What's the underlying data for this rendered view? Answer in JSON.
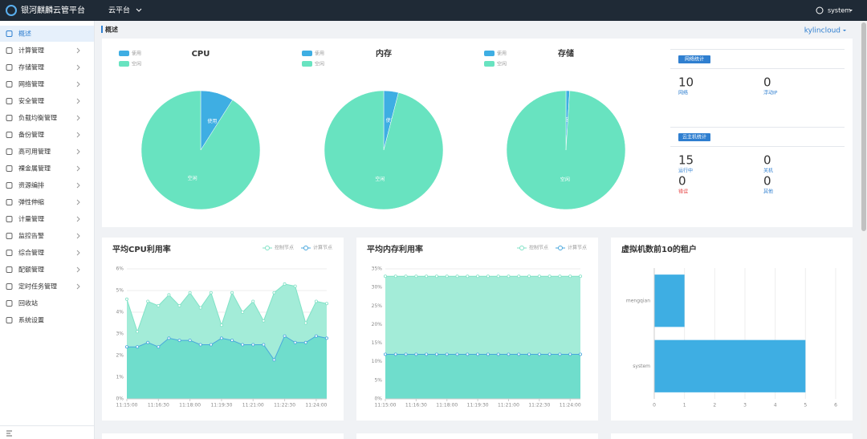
{
  "header": {
    "title": "银河麒麟云管平台",
    "menu": "云平台",
    "user": "system"
  },
  "sidebar": {
    "items": [
      "概述",
      "计算管理",
      "存储管理",
      "网络管理",
      "安全管理",
      "负载均衡管理",
      "备份管理",
      "高可用管理",
      "裸金属管理",
      "资源编排",
      "弹性伸缩",
      "计量管理",
      "监控告警",
      "综合管理",
      "配额管理",
      "定时任务管理",
      "回收站",
      "系统设置"
    ]
  },
  "breadcrumb": {
    "title": "概述",
    "project": "kylincloud"
  },
  "network_stats": {
    "title": "网络统计",
    "items": [
      {
        "value": 10,
        "label": "网络"
      },
      {
        "value": 0,
        "label": "浮动IP"
      }
    ]
  },
  "vm_stats": {
    "title": "云主机统计",
    "items": [
      {
        "value": 15,
        "label": "运行中"
      },
      {
        "value": 0,
        "label": "关机"
      },
      {
        "value": 0,
        "label": "错误"
      },
      {
        "value": 0,
        "label": "其他"
      }
    ]
  },
  "chart_data": [
    {
      "type": "pie",
      "title": "CPU",
      "categories": [
        "使用",
        "空闲"
      ],
      "values": [
        9,
        91
      ],
      "colors": [
        "#3eaee3",
        "#68e3c0"
      ],
      "legend": "top-left"
    },
    {
      "type": "pie",
      "title": "内存",
      "categories": [
        "使用",
        "空闲"
      ],
      "values": [
        4,
        96
      ],
      "colors": [
        "#3eaee3",
        "#68e3c0"
      ],
      "legend": "top-left"
    },
    {
      "type": "pie",
      "title": "存储",
      "categories": [
        "使用",
        "空闲"
      ],
      "values": [
        1,
        99
      ],
      "colors": [
        "#3eaee3",
        "#68e3c0"
      ],
      "legend": "top-left"
    },
    {
      "type": "line",
      "title": "平均CPU利用率",
      "categories": [
        "11:15:00",
        null,
        null,
        "11:16:30",
        null,
        null,
        "11:18:00",
        null,
        null,
        "11:19:30",
        null,
        null,
        "11:21:00",
        null,
        null,
        "11:22:30",
        null,
        null,
        "11:24:00",
        null
      ],
      "series": [
        {
          "name": "控制节点",
          "color": "#80e2c6",
          "fill": "#9eebd6",
          "values": [
            4.6,
            3.1,
            4.5,
            4.3,
            4.8,
            4.3,
            4.9,
            4.2,
            4.9,
            3.4,
            4.9,
            4.0,
            4.5,
            3.6,
            4.9,
            5.3,
            5.2,
            3.5,
            4.5,
            4.4
          ]
        },
        {
          "name": "计算节点",
          "color": "#49a7dd",
          "fill": "#6ddccb",
          "values": [
            2.4,
            2.4,
            2.6,
            2.4,
            2.8,
            2.7,
            2.7,
            2.5,
            2.5,
            2.8,
            2.7,
            2.5,
            2.5,
            2.5,
            1.8,
            2.9,
            2.6,
            2.6,
            2.9,
            2.8
          ]
        }
      ],
      "ylim": [
        0,
        6
      ],
      "yticks": [
        {
          "value": 0,
          "label": "0%"
        },
        {
          "value": 1,
          "label": "1%"
        },
        {
          "value": 2,
          "label": "2%"
        },
        {
          "value": 3,
          "label": "3%"
        },
        {
          "value": 4,
          "label": "4%"
        },
        {
          "value": 5,
          "label": "5%"
        },
        {
          "value": 6,
          "label": "6%"
        }
      ],
      "grid": true,
      "legend": "top-right"
    },
    {
      "type": "line",
      "title": "平均内存利用率",
      "categories": [
        "11:15:00",
        null,
        null,
        "11:16:30",
        null,
        null,
        "11:18:00",
        null,
        null,
        "11:19:30",
        null,
        null,
        "11:21:00",
        null,
        null,
        "11:22:30",
        null,
        null,
        "11:24:00",
        null
      ],
      "series": [
        {
          "name": "控制节点",
          "color": "#80e2c6",
          "fill": "#9eebd6",
          "values": [
            33,
            33,
            33,
            33,
            33,
            33,
            33,
            33,
            33,
            33,
            33,
            33,
            33,
            33,
            33,
            33,
            33,
            33,
            33,
            33
          ]
        },
        {
          "name": "计算节点",
          "color": "#49a7dd",
          "fill": "#6ddccb",
          "values": [
            12,
            12,
            12,
            12,
            12,
            12,
            12,
            12,
            12,
            12,
            12,
            12,
            12,
            12,
            12,
            12,
            12,
            12,
            12,
            12
          ]
        }
      ],
      "ylim": [
        0,
        35
      ],
      "yticks": [
        {
          "value": 0,
          "label": "0%"
        },
        {
          "value": 5,
          "label": "5%"
        },
        {
          "value": 10,
          "label": "10%"
        },
        {
          "value": 15,
          "label": "15%"
        },
        {
          "value": 20,
          "label": "20%"
        },
        {
          "value": 25,
          "label": "25%"
        },
        {
          "value": 30,
          "label": "30%"
        },
        {
          "value": 35,
          "label": "35%"
        }
      ],
      "grid": true,
      "legend": "top-right"
    },
    {
      "type": "bar",
      "orientation": "horizontal",
      "title": "虚拟机数前10的租户",
      "categories": [
        "mengqian",
        "system"
      ],
      "values": [
        1,
        5
      ],
      "color": "#3eaee3",
      "xlim": [
        0,
        6
      ],
      "xticks": [
        0,
        1,
        2,
        3,
        4,
        5,
        6
      ],
      "grid": true
    }
  ]
}
